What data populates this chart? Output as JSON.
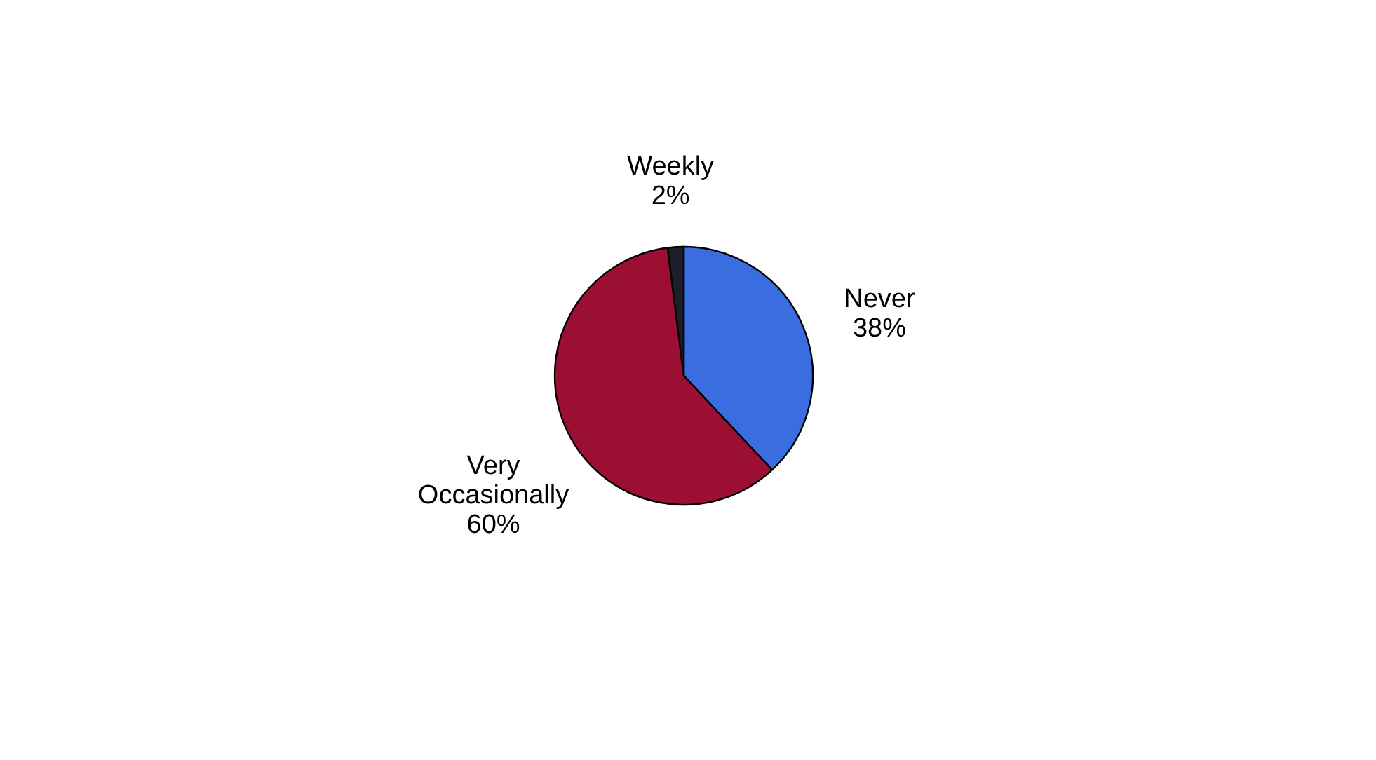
{
  "chart_data": {
    "type": "pie",
    "categories": [
      "Never",
      "Very Occasionally",
      "Weekly"
    ],
    "values": [
      38,
      60,
      2
    ],
    "colors": [
      "#3a6ee0",
      "#9b1032",
      "#1e1e2a"
    ],
    "value_labels": [
      "38%",
      "60%",
      "2%"
    ],
    "legend": false
  }
}
